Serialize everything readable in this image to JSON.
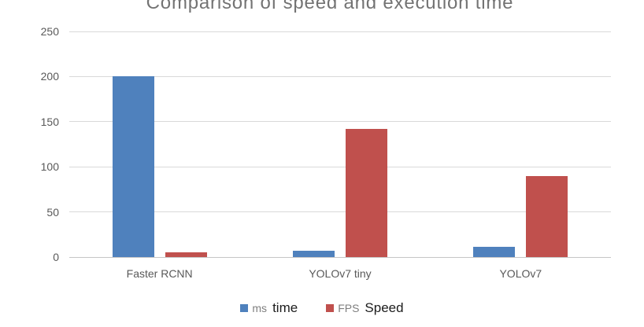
{
  "title": "Comparison of speed and execution time",
  "colors": {
    "series_ms": "#4f81bd",
    "series_fps": "#c0504d",
    "gridline": "#d9d9d9",
    "axis_text": "#595959",
    "title_text": "#737373",
    "legend_muted_text": "#7f7f7f",
    "legend_strong_text": "#1c1c1c",
    "background": "#ffffff"
  },
  "chart_data": {
    "type": "bar",
    "title": "Comparison of speed and execution time",
    "categories": [
      "Faster RCNN",
      "YOLOv7 tiny",
      "YOLOv7"
    ],
    "series": [
      {
        "name": "ms time",
        "color": "#4f81bd",
        "values": [
          200,
          7,
          11
        ]
      },
      {
        "name": "FPS Speed",
        "color": "#c0504d",
        "values": [
          5,
          142,
          90
        ]
      }
    ],
    "xlabel": "",
    "ylabel": "",
    "ylim": [
      0,
      250
    ],
    "yticks": [
      0,
      50,
      100,
      150,
      200,
      250
    ],
    "grid": true,
    "legend_position": "bottom",
    "legend": [
      {
        "swatch_color": "#4f81bd",
        "muted_label": "ms",
        "strong_label": "time"
      },
      {
        "swatch_color": "#c0504d",
        "muted_label": "FPS",
        "strong_label": "Speed"
      }
    ]
  }
}
